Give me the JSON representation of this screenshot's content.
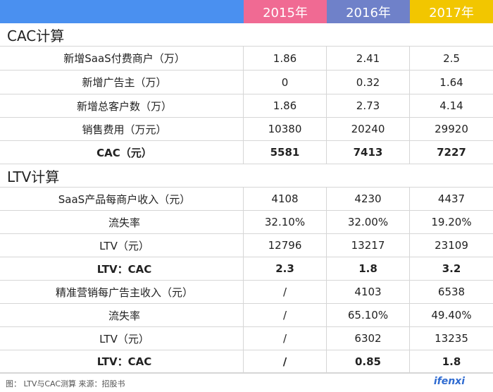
{
  "header": {
    "years": [
      "2015年",
      "2016年",
      "2017年"
    ]
  },
  "sections": {
    "cac": {
      "title": "CAC计算",
      "rows": [
        {
          "label": "新增SaaS付费商户（万）",
          "values": [
            "1.86",
            "2.41",
            "2.5"
          ]
        },
        {
          "label": "新增广告主（万）",
          "values": [
            "0",
            "0.32",
            "1.64"
          ]
        },
        {
          "label": "新增总客户数（万）",
          "values": [
            "1.86",
            "2.73",
            "4.14"
          ]
        },
        {
          "label": "销售费用（万元）",
          "values": [
            "10380",
            "20240",
            "29920"
          ]
        },
        {
          "label": "CAC（元）",
          "values": [
            "5581",
            "7413",
            "7227"
          ]
        }
      ]
    },
    "ltv": {
      "title": "LTV计算",
      "rows": [
        {
          "label": "SaaS产品每商户收入（元）",
          "values": [
            "4108",
            "4230",
            "4437"
          ]
        },
        {
          "label": "流失率",
          "values": [
            "32.10%",
            "32.00%",
            "19.20%"
          ]
        },
        {
          "label": "LTV（元）",
          "values": [
            "12796",
            "13217",
            "23109"
          ]
        },
        {
          "label": "LTV：CAC",
          "values": [
            "2.3",
            "1.8",
            "3.2"
          ]
        },
        {
          "label": "精准营销每广告主收入（元）",
          "values": [
            "/",
            "4103",
            "6538"
          ]
        },
        {
          "label": "流失率",
          "values": [
            "/",
            "65.10%",
            "49.40%"
          ]
        },
        {
          "label": "LTV（元）",
          "values": [
            "/",
            "6302",
            "13235"
          ]
        },
        {
          "label": "LTV：CAC",
          "values": [
            "/",
            "0.85",
            "1.8"
          ]
        }
      ]
    }
  },
  "footer": {
    "caption": "图： LTV与CAC测算 来源：招股书",
    "logo": "ifenxi"
  },
  "colors": {
    "header_blue": "#4a90f0",
    "header_pink": "#f06a93",
    "header_purple": "#6f81c9",
    "header_yellow": "#f2c600"
  }
}
